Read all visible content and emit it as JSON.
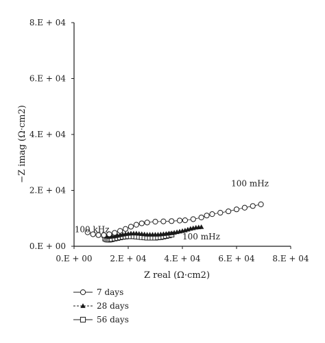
{
  "chart_data": {
    "type": "scatter",
    "title": "",
    "xlabel": "Z real (Ω·cm2)",
    "ylabel": "−Z imag (Ω·cm2)",
    "xlim": [
      0,
      80000
    ],
    "ylim": [
      0,
      80000
    ],
    "x_ticks": [
      0,
      20000,
      40000,
      60000,
      80000
    ],
    "y_ticks": [
      0,
      20000,
      40000,
      60000,
      80000
    ],
    "x_tick_labels": [
      "0.E + 00",
      "2.E + 04",
      "4.E + 04",
      "6.E + 04",
      "8.E + 04"
    ],
    "y_tick_labels": [
      "0.E + 00",
      "2.E + 04",
      "4.E + 04",
      "6.E + 04",
      "8.E + 04"
    ],
    "grid": false,
    "legend_position": "bottom-left",
    "annotations": [
      {
        "text": "100 mHz",
        "x": 58000,
        "y": 21500
      },
      {
        "text": "100 kHz",
        "x": 200,
        "y": 5000
      },
      {
        "text": "100 mHz",
        "x": 40000,
        "y": 2500
      }
    ],
    "series": [
      {
        "name": "7 days",
        "marker": "circle",
        "x": [
          5000,
          7000,
          9000,
          11000,
          13000,
          15000,
          17000,
          19000,
          21000,
          23000,
          25000,
          27000,
          30000,
          33000,
          36000,
          39000,
          41000,
          44000,
          47000,
          49000,
          51000,
          54000,
          57000,
          60000,
          63000,
          66000,
          69000
        ],
        "y": [
          5000,
          4300,
          4000,
          4000,
          4300,
          4800,
          5500,
          6200,
          7000,
          7700,
          8200,
          8500,
          8800,
          8900,
          9000,
          9200,
          9300,
          9700,
          10300,
          11000,
          11500,
          12000,
          12500,
          13200,
          13800,
          14400,
          15000
        ]
      },
      {
        "name": "28 days",
        "marker": "triangle",
        "x": [
          11000,
          12000,
          13000,
          14000,
          15000,
          16000,
          17000,
          18000,
          19000,
          20000,
          21000,
          22000,
          23000,
          24000,
          25000,
          26000,
          27000,
          28000,
          29000,
          30000,
          31000,
          32000,
          33000,
          34000,
          35000,
          36000,
          37000,
          38000,
          39000,
          40000,
          41000,
          42000,
          43000,
          44000,
          45000,
          46000,
          47000
        ],
        "y": [
          3800,
          3500,
          3400,
          3500,
          3600,
          3800,
          4000,
          4200,
          4400,
          4500,
          4600,
          4600,
          4600,
          4500,
          4400,
          4300,
          4200,
          4200,
          4200,
          4200,
          4200,
          4300,
          4400,
          4500,
          4600,
          4700,
          4900,
          5100,
          5300,
          5500,
          5700,
          6000,
          6300,
          6500,
          6700,
          6800,
          6900
        ]
      },
      {
        "name": "56 days",
        "marker": "square",
        "x": [
          11500,
          12000,
          12500,
          13000,
          13500,
          14000,
          15000,
          16000,
          17000,
          18000,
          19000,
          20000,
          21000,
          22000,
          23000,
          24000,
          25000,
          26000,
          27000,
          28000,
          29000,
          30000,
          31000,
          32000,
          33000,
          34000,
          35000,
          36000
        ],
        "y": [
          2800,
          2500,
          2400,
          2400,
          2500,
          2600,
          2800,
          3000,
          3200,
          3400,
          3500,
          3600,
          3600,
          3600,
          3500,
          3400,
          3300,
          3200,
          3100,
          3100,
          3100,
          3100,
          3200,
          3300,
          3500,
          3700,
          3900,
          4200
        ]
      }
    ]
  }
}
